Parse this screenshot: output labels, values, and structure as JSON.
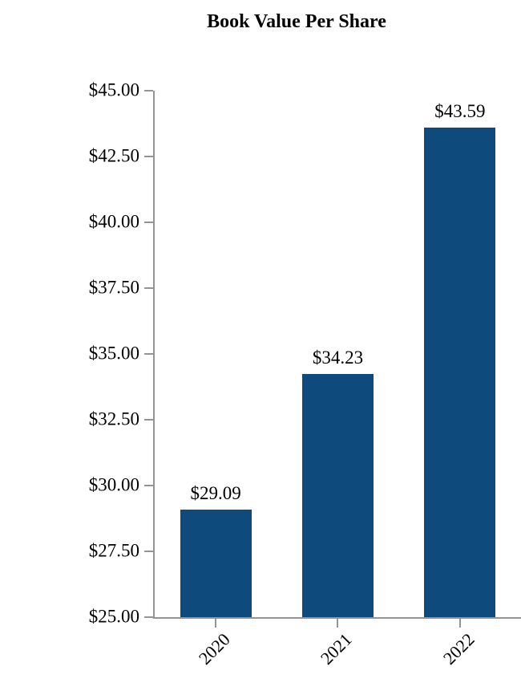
{
  "chart_data": {
    "type": "bar",
    "title": "Book Value Per Share",
    "categories": [
      "2020",
      "2021",
      "2022"
    ],
    "values": [
      29.09,
      34.23,
      43.59
    ],
    "value_labels": [
      "$29.09",
      "$34.23",
      "$43.59"
    ],
    "y_ticks": [
      "$45.00",
      "$42.50",
      "$40.00",
      "$37.50",
      "$35.00",
      "$32.50",
      "$30.00",
      "$27.50",
      "$25.00"
    ],
    "ylim": [
      25,
      45
    ],
    "xlabel": "",
    "ylabel": "",
    "grid": false,
    "legend_position": "none",
    "bar_color": "#0E4A7B",
    "axis_color": "#949494",
    "background_color": "#ffffff",
    "text_color": "#000000"
  }
}
